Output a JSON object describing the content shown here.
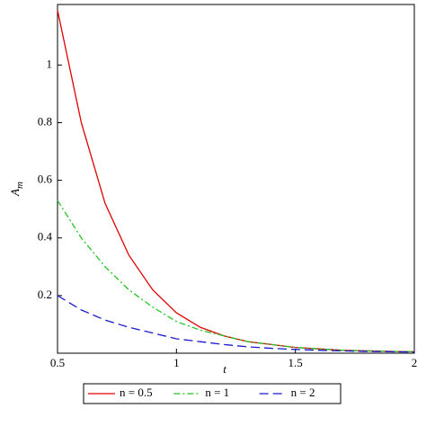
{
  "chart_data": {
    "type": "line",
    "x_label": "t",
    "y_label": "A",
    "y_label_subscript": "m",
    "x": [
      0.5,
      0.6,
      0.7,
      0.8,
      0.9,
      1.0,
      1.1,
      1.2,
      1.3,
      1.4,
      1.5,
      1.6,
      1.7,
      1.8,
      1.9,
      2.0
    ],
    "series": [
      {
        "name": "n = 0.5",
        "color": "#e00000",
        "dash": "solid",
        "values": [
          1.19,
          0.8,
          0.52,
          0.34,
          0.22,
          0.14,
          0.09,
          0.06,
          0.04,
          0.03,
          0.02,
          0.015,
          0.01,
          0.008,
          0.006,
          0.005
        ]
      },
      {
        "name": "n = 1",
        "color": "#22c322",
        "dash": "dashdot",
        "values": [
          0.53,
          0.4,
          0.3,
          0.22,
          0.16,
          0.11,
          0.08,
          0.06,
          0.04,
          0.03,
          0.02,
          0.015,
          0.01,
          0.008,
          0.006,
          0.005
        ]
      },
      {
        "name": "n = 2",
        "color": "#1a1ad0",
        "dash": "dashed",
        "values": [
          0.2,
          0.15,
          0.115,
          0.09,
          0.07,
          0.05,
          0.04,
          0.03,
          0.022,
          0.017,
          0.013,
          0.01,
          0.008,
          0.006,
          0.005,
          0.004
        ]
      }
    ],
    "xlim": [
      0.5,
      2.0
    ],
    "ylim": [
      0,
      1.21
    ],
    "xticks": [
      0.5,
      1,
      1.5,
      2
    ],
    "yticks": [
      0.2,
      0.4,
      0.6,
      0.8,
      1
    ],
    "grid": false,
    "legend": "bottom"
  }
}
